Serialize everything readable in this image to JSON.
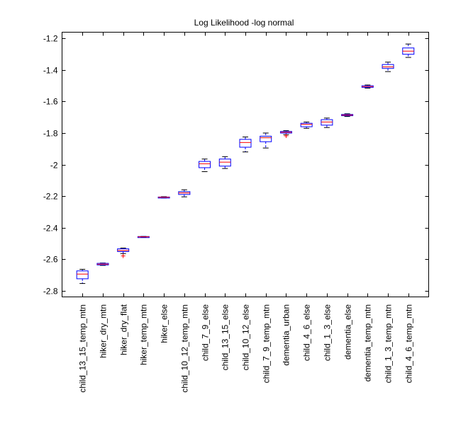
{
  "chart_data": {
    "type": "box",
    "title": "Log Likelihood -log normal",
    "xlabel": "",
    "ylabel": "",
    "ylim": [
      -2.84,
      -1.16
    ],
    "yticks": [
      -1.2,
      -1.4,
      -1.6,
      -1.8,
      -2,
      -2.2,
      -2.4,
      -2.6,
      -2.8
    ],
    "ytick_labels": [
      "-1.2",
      "-1.4",
      "-1.6",
      "-1.8",
      "-2",
      "-2.2",
      "-2.4",
      "-2.6",
      "-2.8"
    ],
    "grid": false,
    "categories": [
      "child_13_15_temp_mtn",
      "hiker_dry_mtn",
      "hiker_dry_flat",
      "hiker_temp_mtn",
      "hiker_else",
      "child_10_12_temp_mtn",
      "child_7_9_else",
      "child_13_15_else",
      "child_10_12_else",
      "child_7_9_temp_mtn",
      "dementia_urban",
      "child_4_6_else",
      "child_1_3_else",
      "dementia_else",
      "dementia_temp_mtn",
      "child_1_3_temp_mtn",
      "child_4_6_temp_mtn"
    ],
    "boxes": [
      {
        "wlo": -2.755,
        "q1": -2.725,
        "med": -2.695,
        "q3": -2.675,
        "whi": -2.665,
        "outliers": []
      },
      {
        "wlo": -2.64,
        "q1": -2.637,
        "med": -2.632,
        "q3": -2.627,
        "whi": -2.625,
        "outliers": []
      },
      {
        "wlo": -2.565,
        "q1": -2.552,
        "med": -2.545,
        "q3": -2.535,
        "whi": -2.53,
        "outliers": [
          -2.58
        ]
      },
      {
        "wlo": -2.462,
        "q1": -2.46,
        "med": -2.459,
        "q3": -2.457,
        "whi": -2.456,
        "outliers": []
      },
      {
        "wlo": -2.212,
        "q1": -2.21,
        "med": -2.208,
        "q3": -2.206,
        "whi": -2.204,
        "outliers": []
      },
      {
        "wlo": -2.205,
        "q1": -2.19,
        "med": -2.18,
        "q3": -2.172,
        "whi": -2.16,
        "outliers": []
      },
      {
        "wlo": -2.045,
        "q1": -2.02,
        "med": -1.995,
        "q3": -1.98,
        "whi": -1.965,
        "outliers": []
      },
      {
        "wlo": -2.025,
        "q1": -2.01,
        "med": -1.985,
        "q3": -1.965,
        "whi": -1.95,
        "outliers": []
      },
      {
        "wlo": -1.92,
        "q1": -1.89,
        "med": -1.86,
        "q3": -1.84,
        "whi": -1.825,
        "outliers": []
      },
      {
        "wlo": -1.895,
        "q1": -1.855,
        "med": -1.83,
        "q3": -1.82,
        "whi": -1.8,
        "outliers": []
      },
      {
        "wlo": -1.81,
        "q1": -1.8,
        "med": -1.795,
        "q3": -1.79,
        "whi": -1.785,
        "outliers": [
          -1.818
        ]
      },
      {
        "wlo": -1.77,
        "q1": -1.76,
        "med": -1.745,
        "q3": -1.738,
        "whi": -1.73,
        "outliers": []
      },
      {
        "wlo": -1.765,
        "q1": -1.75,
        "med": -1.73,
        "q3": -1.715,
        "whi": -1.705,
        "outliers": []
      },
      {
        "wlo": -1.695,
        "q1": -1.69,
        "med": -1.686,
        "q3": -1.682,
        "whi": -1.678,
        "outliers": []
      },
      {
        "wlo": -1.515,
        "q1": -1.51,
        "med": -1.505,
        "q3": -1.5,
        "whi": -1.495,
        "outliers": []
      },
      {
        "wlo": -1.41,
        "q1": -1.39,
        "med": -1.38,
        "q3": -1.365,
        "whi": -1.35,
        "outliers": []
      },
      {
        "wlo": -1.32,
        "q1": -1.3,
        "med": -1.28,
        "q3": -1.26,
        "whi": -1.235,
        "outliers": []
      }
    ],
    "colors": {
      "box": "#0000ff",
      "median": "#ff0000",
      "outlier": "#ff0000",
      "axis": "#000000"
    }
  }
}
